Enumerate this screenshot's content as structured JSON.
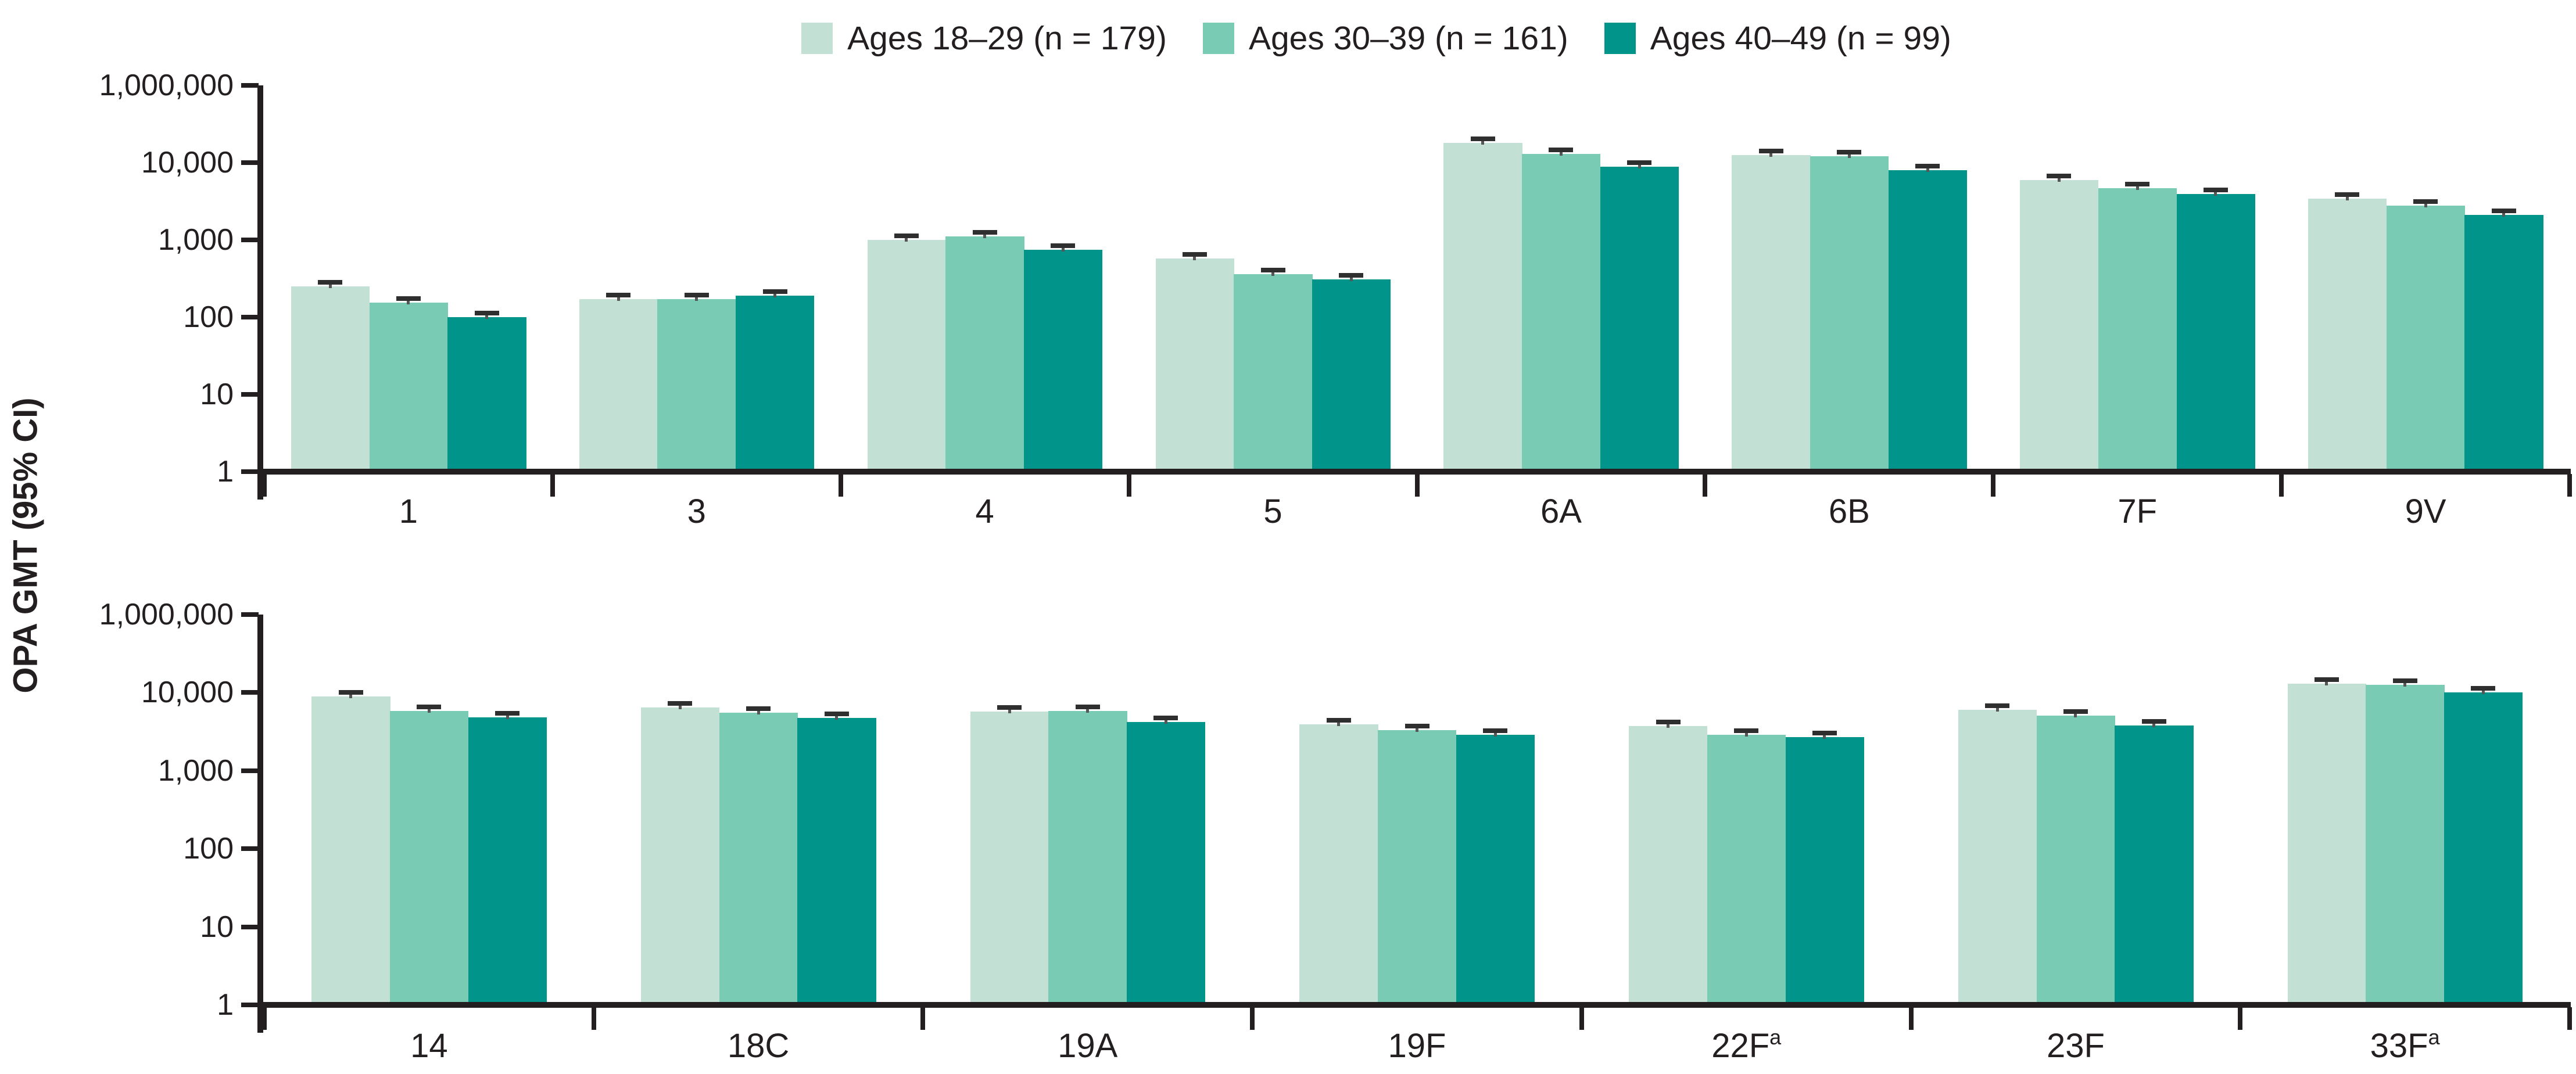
{
  "figure": {
    "ylabel": "OPA GMT (95% CI)",
    "y_tick_labels": [
      "1",
      "10",
      "100",
      "1,000",
      "10,000",
      "1,000,000"
    ],
    "colors": {
      "age_18_29": "#c2e1d4",
      "age_30_39": "#79cbb3",
      "age_40_49": "#00948a",
      "axis": "#231f20",
      "error_cap": "#2f2f2f"
    }
  },
  "legend": [
    {
      "label": "Ages 18–29 (n = 179)",
      "color": "#c2e1d4"
    },
    {
      "label": "Ages 30–39 (n = 161)",
      "color": "#79cbb3"
    },
    {
      "label": "Ages 40–49 (n = 99)",
      "color": "#00948a"
    }
  ],
  "chart_data": [
    {
      "type": "bar",
      "panel": "top",
      "yscale": "log",
      "ylim": [
        1,
        1000000
      ],
      "ylabel": "OPA GMT (95% CI)",
      "error_bars_visible": true,
      "categories": [
        {
          "label": "1",
          "sup": ""
        },
        {
          "label": "3",
          "sup": ""
        },
        {
          "label": "4",
          "sup": ""
        },
        {
          "label": "5",
          "sup": ""
        },
        {
          "label": "6A",
          "sup": ""
        },
        {
          "label": "6B",
          "sup": ""
        },
        {
          "label": "7F",
          "sup": ""
        },
        {
          "label": "9V",
          "sup": ""
        }
      ],
      "series": [
        {
          "name": "Ages 18–29 (n = 179)",
          "color": "#c2e1d4",
          "values": [
            250,
            170,
            1000,
            570,
            18000,
            12500,
            5900,
            3400
          ]
        },
        {
          "name": "Ages 30–39 (n = 161)",
          "color": "#79cbb3",
          "values": [
            155,
            170,
            1100,
            360,
            13000,
            12000,
            4700,
            2800
          ]
        },
        {
          "name": "Ages 40–49 (n = 99)",
          "color": "#00948a",
          "values": [
            100,
            190,
            750,
            310,
            8800,
            8000,
            3900,
            2100
          ]
        }
      ]
    },
    {
      "type": "bar",
      "panel": "bottom",
      "yscale": "log",
      "ylim": [
        1,
        1000000
      ],
      "ylabel": "OPA GMT (95% CI)",
      "error_bars_visible": true,
      "categories": [
        {
          "label": "14",
          "sup": ""
        },
        {
          "label": "18C",
          "sup": ""
        },
        {
          "label": "19A",
          "sup": ""
        },
        {
          "label": "19F",
          "sup": ""
        },
        {
          "label": "22F",
          "sup": "a"
        },
        {
          "label": "23F",
          "sup": ""
        },
        {
          "label": "33F",
          "sup": "a"
        }
      ],
      "series": [
        {
          "name": "Ages 18–29 (n = 179)",
          "color": "#c2e1d4",
          "values": [
            9000,
            6500,
            5700,
            3900,
            3700,
            6000,
            13000
          ]
        },
        {
          "name": "Ages 30–39 (n = 161)",
          "color": "#79cbb3",
          "values": [
            5800,
            5500,
            5800,
            3300,
            2900,
            5100,
            12500
          ]
        },
        {
          "name": "Ages 40–49 (n = 99)",
          "color": "#00948a",
          "values": [
            4800,
            4700,
            4200,
            2900,
            2700,
            3800,
            10000
          ]
        }
      ]
    }
  ]
}
